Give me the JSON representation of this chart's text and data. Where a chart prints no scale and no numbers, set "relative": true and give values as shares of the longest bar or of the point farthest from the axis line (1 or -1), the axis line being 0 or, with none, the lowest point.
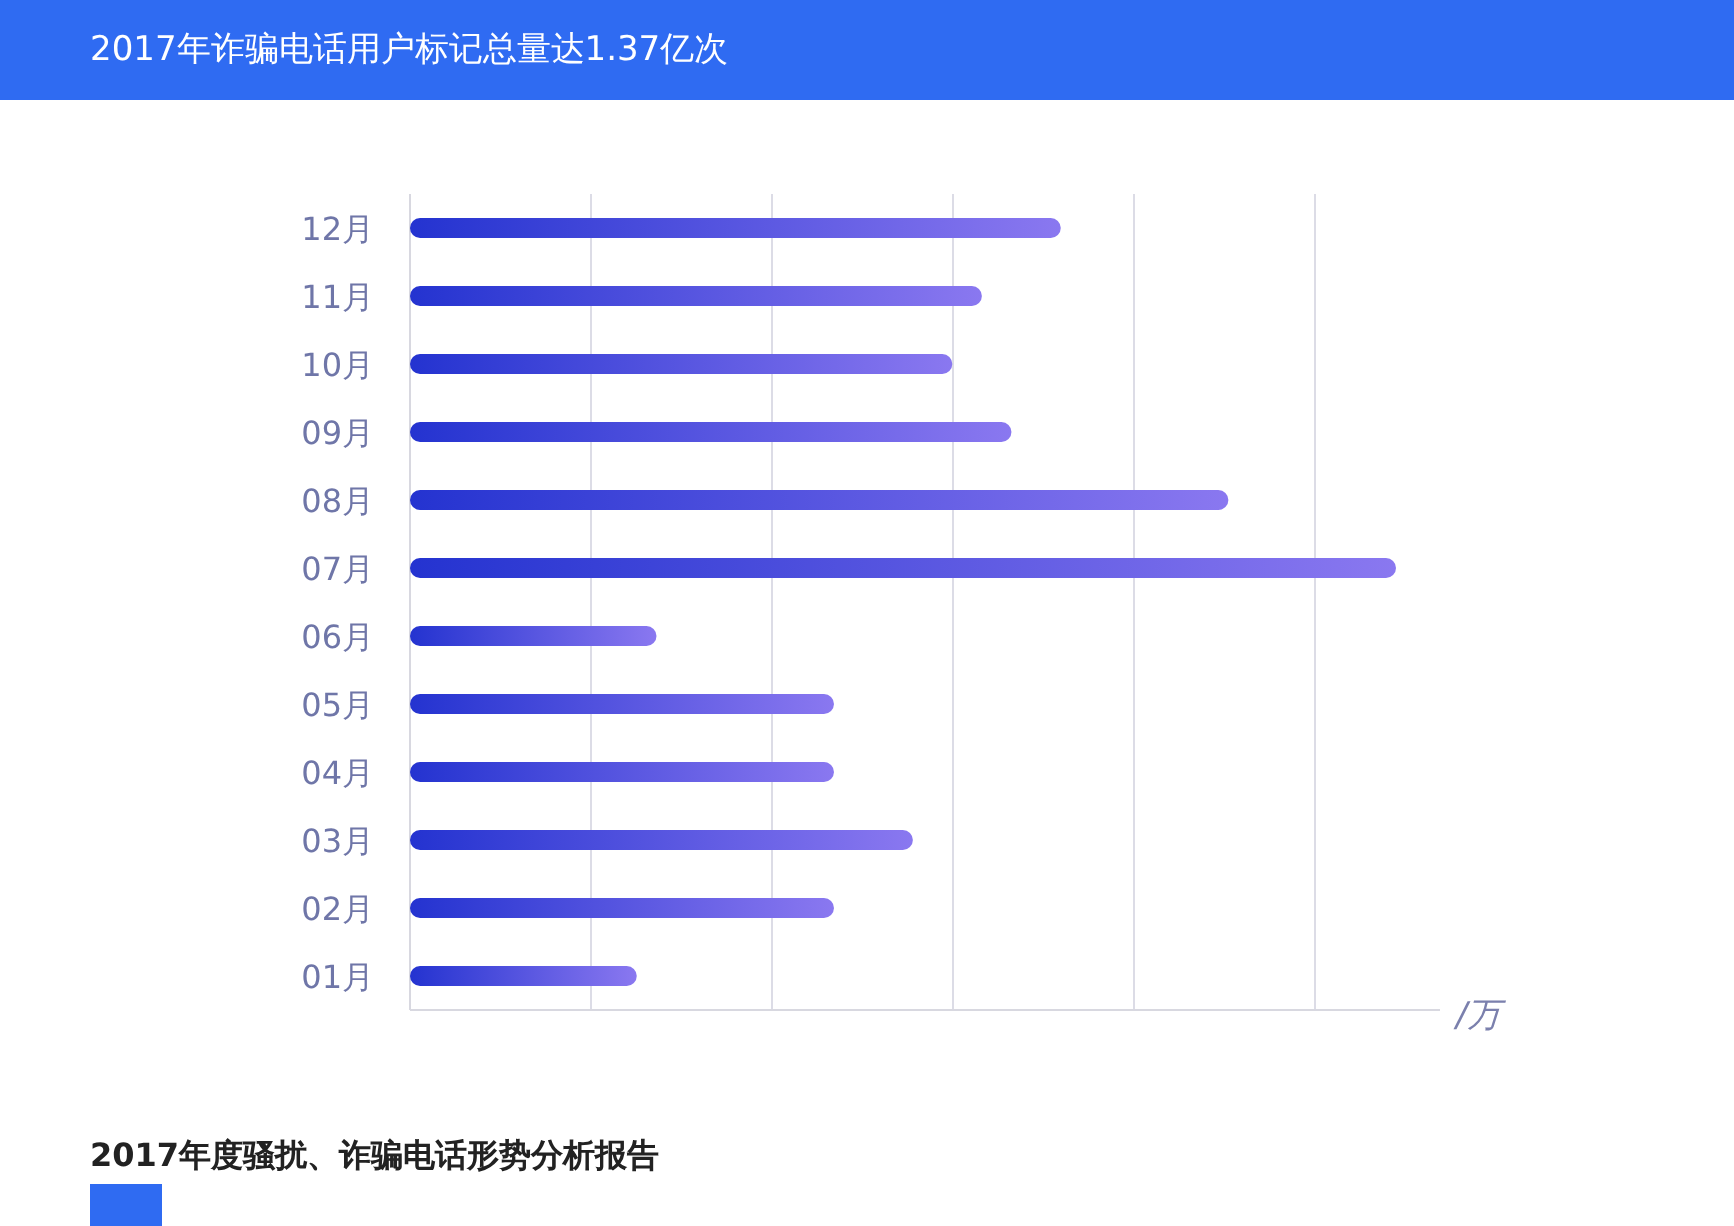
{
  "chart_data": {
    "type": "bar",
    "orientation": "horizontal",
    "relative": true,
    "title": "2017年诈骗电话用户标记总量达1.37亿次",
    "xlabel": "/万",
    "categories": [
      "12月",
      "11月",
      "10月",
      "09月",
      "08月",
      "07月",
      "06月",
      "05月",
      "04月",
      "03月",
      "02月",
      "01月"
    ],
    "series": [
      {
        "color": "#2433d0",
        "values": [
          0.66,
          0.58,
          0.55,
          0.61,
          0.83,
          1,
          0.25,
          0.43,
          0.43,
          0.51,
          0.43,
          0.23
        ]
      }
    ],
    "grid": "x",
    "annotations": [
      "2017年度骚扰、诈骗电话形势分析报告"
    ]
  }
}
